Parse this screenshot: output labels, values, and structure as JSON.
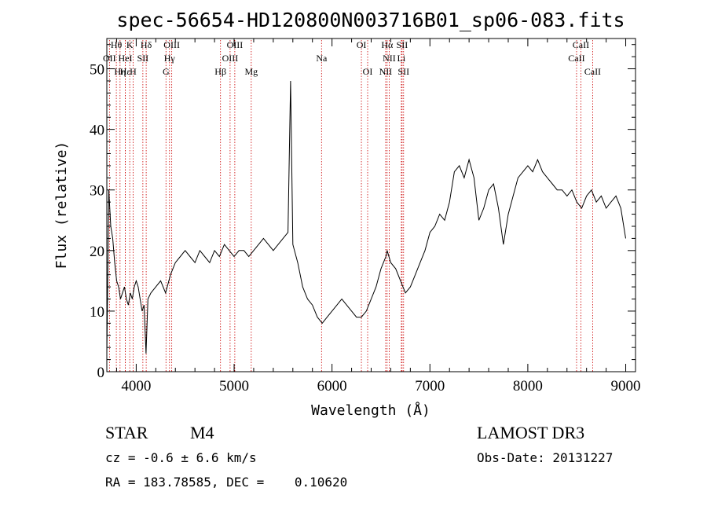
{
  "chart_data": {
    "type": "line",
    "title": "spec-56654-HD120800N003716B01_sp06-083.fits",
    "xlabel": "Wavelength (Å)",
    "ylabel": "Flux (relative)",
    "xlim": [
      3700,
      9100
    ],
    "ylim": [
      0,
      55
    ],
    "xticks": [
      4000,
      5000,
      6000,
      7000,
      8000,
      9000
    ],
    "yticks": [
      0,
      10,
      20,
      30,
      40,
      50
    ],
    "series": [
      {
        "x": [
          3700,
          3720,
          3740,
          3760,
          3780,
          3800,
          3820,
          3840,
          3860,
          3880,
          3900,
          3920,
          3940,
          3960,
          3980,
          4000,
          4020,
          4040,
          4060,
          4080,
          4100,
          4120,
          4150,
          4200,
          4250,
          4300,
          4350,
          4400,
          4450,
          4500,
          4550,
          4600,
          4650,
          4700,
          4750,
          4800,
          4850,
          4900,
          4950,
          5000,
          5050,
          5100,
          5150,
          5200,
          5250,
          5300,
          5350,
          5400,
          5450,
          5500,
          5550,
          5577,
          5600,
          5650,
          5700,
          5750,
          5800,
          5850,
          5900,
          5950,
          6000,
          6050,
          6100,
          6150,
          6200,
          6250,
          6300,
          6350,
          6400,
          6450,
          6500,
          6550,
          6563,
          6600,
          6650,
          6700,
          6750,
          6800,
          6850,
          6900,
          6950,
          7000,
          7050,
          7100,
          7150,
          7200,
          7250,
          7300,
          7350,
          7400,
          7450,
          7500,
          7550,
          7600,
          7650,
          7700,
          7750,
          7800,
          7850,
          7900,
          7950,
          8000,
          8050,
          8100,
          8150,
          8200,
          8250,
          8300,
          8350,
          8400,
          8450,
          8500,
          8550,
          8600,
          8650,
          8700,
          8750,
          8800,
          8850,
          8900,
          8950,
          9000
        ],
        "y": [
          3,
          30,
          24,
          22,
          18,
          15,
          14,
          12,
          13,
          14,
          12,
          11,
          13,
          12,
          14,
          15,
          14,
          12,
          10,
          11,
          3,
          12,
          13,
          14,
          15,
          13,
          16,
          18,
          19,
          20,
          19,
          18,
          20,
          19,
          18,
          20,
          19,
          21,
          20,
          19,
          20,
          20,
          19,
          20,
          21,
          22,
          21,
          20,
          21,
          22,
          23,
          48,
          21,
          18,
          14,
          12,
          11,
          9,
          8,
          9,
          10,
          11,
          12,
          11,
          10,
          9,
          9,
          10,
          12,
          14,
          17,
          19,
          20,
          18,
          17,
          15,
          13,
          14,
          16,
          18,
          20,
          23,
          24,
          26,
          25,
          28,
          33,
          34,
          32,
          35,
          32,
          25,
          27,
          30,
          31,
          27,
          21,
          26,
          29,
          32,
          33,
          34,
          33,
          35,
          33,
          32,
          31,
          30,
          30,
          29,
          30,
          28,
          27,
          29,
          30,
          28,
          29,
          27,
          28,
          29,
          27,
          22
        ]
      }
    ],
    "spectral_lines": [
      {
        "label": "Hθ",
        "wavelength": 3797,
        "row": 1
      },
      {
        "label": "OII",
        "wavelength": 3727,
        "row": 2
      },
      {
        "label": "Hη",
        "wavelength": 3835,
        "row": 3
      },
      {
        "label": "Hε",
        "wavelength": 3889,
        "row": 3
      },
      {
        "label": "K",
        "wavelength": 3934,
        "row": 1
      },
      {
        "label": "HeI",
        "wavelength": 3889,
        "row": 2
      },
      {
        "label": "SII",
        "wavelength": 4068,
        "row": 2
      },
      {
        "label": "H",
        "wavelength": 3968,
        "row": 3
      },
      {
        "label": "Hδ",
        "wavelength": 4102,
        "row": 1
      },
      {
        "label": "OIII",
        "wavelength": 4363,
        "row": 1
      },
      {
        "label": "Hγ",
        "wavelength": 4340,
        "row": 2
      },
      {
        "label": "G",
        "wavelength": 4304,
        "row": 3
      },
      {
        "label": "OIII",
        "wavelength": 5007,
        "row": 1
      },
      {
        "label": "OIII",
        "wavelength": 4959,
        "row": 2
      },
      {
        "label": "Hβ",
        "wavelength": 4861,
        "row": 3
      },
      {
        "label": "Mg",
        "wavelength": 5175,
        "row": 3
      },
      {
        "label": "Na",
        "wavelength": 5893,
        "row": 2
      },
      {
        "label": "OI",
        "wavelength": 6300,
        "row": 1
      },
      {
        "label": "OI",
        "wavelength": 6364,
        "row": 3
      },
      {
        "label": "Hα",
        "wavelength": 6563,
        "row": 1
      },
      {
        "label": "SII",
        "wavelength": 6716,
        "row": 1
      },
      {
        "label": "NII",
        "wavelength": 6584,
        "row": 2
      },
      {
        "label": "Li",
        "wavelength": 6708,
        "row": 2
      },
      {
        "label": "NII",
        "wavelength": 6548,
        "row": 3
      },
      {
        "label": "SII",
        "wavelength": 6731,
        "row": 3
      },
      {
        "label": "CaII",
        "wavelength": 8542,
        "row": 1
      },
      {
        "label": "CaII",
        "wavelength": 8498,
        "row": 2
      },
      {
        "label": "CaII",
        "wavelength": 8662,
        "row": 3
      }
    ],
    "grid": false,
    "line_color": "#000000",
    "marker_color": "#cc0000"
  },
  "info": {
    "class_label": "STAR",
    "subclass": "M4",
    "survey": "LAMOST DR3",
    "velocity": "cz = -0.6 ± 6.6 km/s",
    "obs_date": "Obs-Date: 20131227",
    "coords": "RA = 183.78585, DEC =    0.10620"
  }
}
